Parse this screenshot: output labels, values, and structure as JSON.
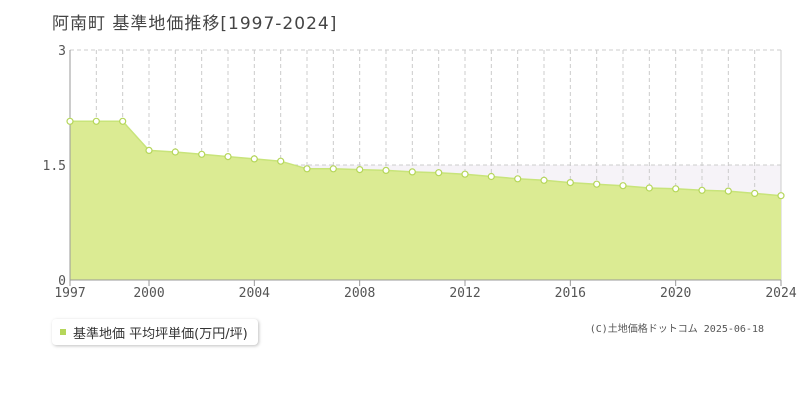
{
  "title": "阿南町 基準地価推移[1997-2024]",
  "credit": "(C)土地価格ドットコム 2025-06-18",
  "colors": {
    "line": "#c8e47a",
    "fill": "#dbeb93",
    "point_stroke": "#b5d65a",
    "point_fill": "#ffffff",
    "band": "#f6f3f8",
    "grid": "#cccccc",
    "axis": "#999999",
    "legend_swatch": "#b5d65a"
  },
  "chart_data": {
    "type": "area",
    "title": "阿南町 基準地価推移[1997-2024]",
    "xlabel": "",
    "ylabel": "",
    "xlim": [
      1997,
      2024
    ],
    "ylim": [
      0,
      3
    ],
    "x_ticks": [
      "1997",
      "2000",
      "2004",
      "2008",
      "2012",
      "2016",
      "2020",
      "2024"
    ],
    "y_ticks": [
      "0",
      "1.5",
      "3"
    ],
    "grid": true,
    "legend_position": "bottom-left",
    "series": [
      {
        "name": "基準地価 平均坪単価(万円/坪)",
        "x": [
          1997,
          1998,
          1999,
          2000,
          2001,
          2002,
          2003,
          2004,
          2005,
          2006,
          2007,
          2008,
          2009,
          2010,
          2011,
          2012,
          2013,
          2014,
          2015,
          2016,
          2017,
          2018,
          2019,
          2020,
          2021,
          2022,
          2023,
          2024
        ],
        "values": [
          2.07,
          2.07,
          2.07,
          1.69,
          1.67,
          1.64,
          1.61,
          1.58,
          1.55,
          1.45,
          1.45,
          1.44,
          1.43,
          1.41,
          1.4,
          1.38,
          1.35,
          1.32,
          1.3,
          1.27,
          1.25,
          1.23,
          1.2,
          1.19,
          1.17,
          1.16,
          1.13,
          1.1
        ]
      }
    ]
  }
}
